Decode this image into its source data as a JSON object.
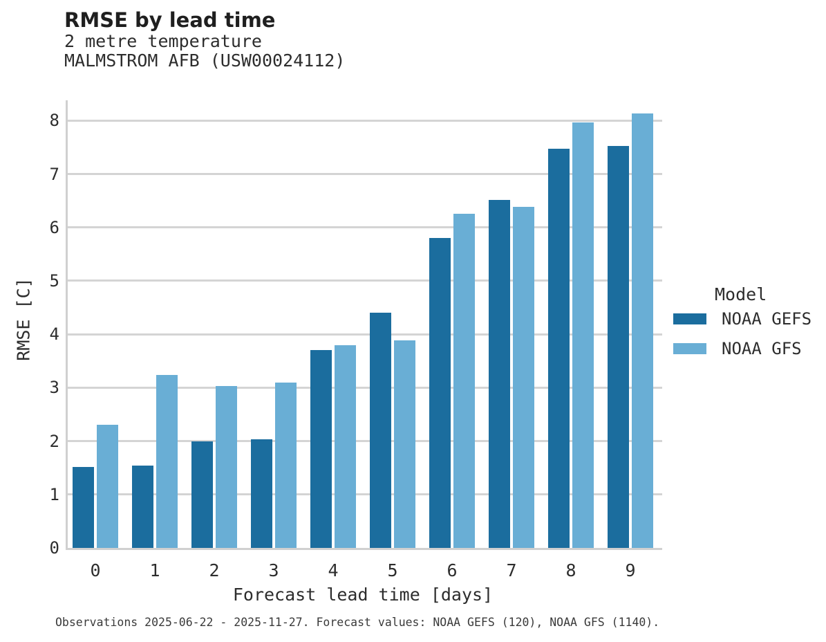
{
  "header": {
    "title": "RMSE by lead time",
    "subtitle_variable": "2 metre temperature",
    "subtitle_station": "MALMSTROM AFB (USW00024112)"
  },
  "chart_data": {
    "type": "bar",
    "title": "RMSE by lead time",
    "subtitle": [
      "2 metre temperature",
      "MALMSTROM AFB (USW00024112)"
    ],
    "categories": [
      "0",
      "1",
      "2",
      "3",
      "4",
      "5",
      "6",
      "7",
      "8",
      "9"
    ],
    "series": [
      {
        "name": "NOAA GEFS",
        "color": "#1b6d9e",
        "values": [
          1.51,
          1.54,
          2.0,
          2.04,
          3.71,
          4.4,
          5.8,
          6.51,
          7.47,
          7.52
        ]
      },
      {
        "name": "NOAA GFS",
        "color": "#69aed5",
        "values": [
          2.3,
          3.24,
          3.03,
          3.1,
          3.8,
          3.89,
          6.25,
          6.39,
          7.96,
          8.14
        ]
      }
    ],
    "xlabel": "Forecast lead time [days]",
    "ylabel": "RMSE [C]",
    "ylim": [
      0,
      8.38
    ],
    "yticks": [
      0,
      1,
      2,
      3,
      4,
      5,
      6,
      7,
      8
    ],
    "grid": true,
    "grid_color": "#d4d4d4",
    "legend_title": "Model",
    "legend_position": "right of plot, middle"
  },
  "footer": {
    "note": "Observations 2025-06-22 - 2025-11-27. Forecast values: NOAA GEFS (120), NOAA GFS (1140)."
  }
}
